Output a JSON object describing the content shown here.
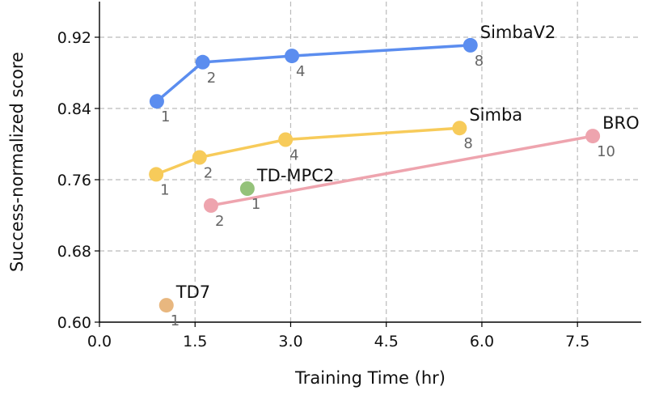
{
  "chart_data": {
    "type": "line",
    "title": "",
    "xlabel": "Training Time (hr)",
    "ylabel": "Success-normalized score",
    "xlim": [
      0,
      8.5
    ],
    "ylim": [
      0.6,
      0.96
    ],
    "xticks": [
      "0.0",
      "1.5",
      "3.0",
      "4.5",
      "6.0",
      "7.5"
    ],
    "xtick_values": [
      0,
      1.5,
      3.0,
      4.5,
      6.0,
      7.5
    ],
    "yticks": [
      "0.60",
      "0.68",
      "0.76",
      "0.84",
      "0.92"
    ],
    "ytick_values": [
      0.6,
      0.68,
      0.76,
      0.84,
      0.92
    ],
    "grid": true,
    "series": [
      {
        "name": "SimbaV2",
        "color": "#5b8def",
        "x": [
          0.9,
          1.62,
          3.02,
          5.82
        ],
        "y": [
          0.848,
          0.892,
          0.899,
          0.911
        ],
        "point_labels": [
          "1",
          "2",
          "4",
          "8"
        ]
      },
      {
        "name": "Simba",
        "color": "#f7cb5a",
        "x": [
          0.89,
          1.57,
          2.92,
          5.65
        ],
        "y": [
          0.766,
          0.785,
          0.805,
          0.818
        ],
        "point_labels": [
          "1",
          "2",
          "4",
          "8"
        ]
      },
      {
        "name": "BRO",
        "color": "#eea4ae",
        "x": [
          1.75,
          7.74
        ],
        "y": [
          0.731,
          0.809
        ],
        "point_labels": [
          "2",
          "10"
        ]
      },
      {
        "name": "TD-MPC2",
        "color": "#94c27a",
        "x": [
          2.32
        ],
        "y": [
          0.75
        ],
        "point_labels": [
          "1"
        ]
      },
      {
        "name": "TD7",
        "color": "#e8b77f",
        "x": [
          1.05
        ],
        "y": [
          0.619
        ],
        "point_labels": [
          "1"
        ]
      }
    ]
  }
}
